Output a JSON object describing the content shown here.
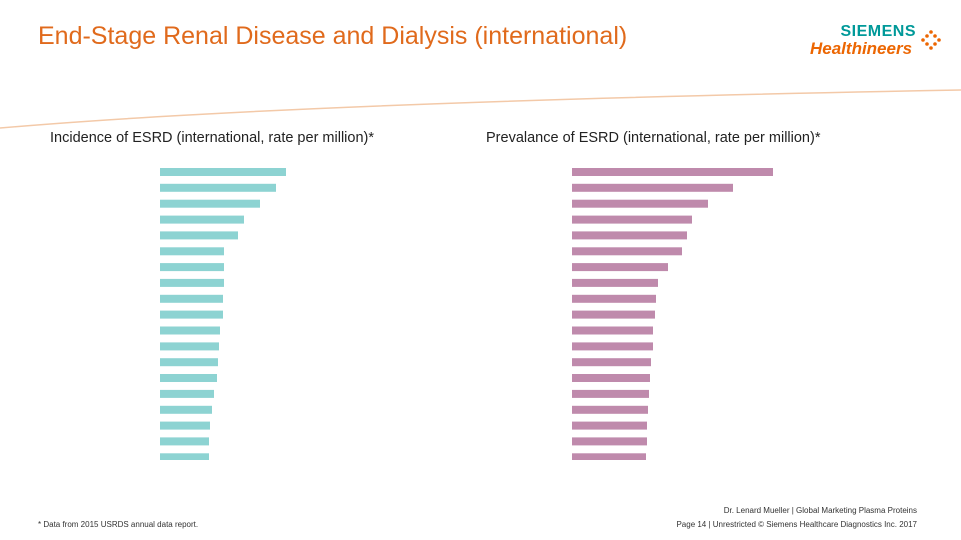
{
  "slide": {
    "title": "End-Stage Renal Disease and Dialysis (international)",
    "footnote": "* Data from 2015 USRDS annual data report.",
    "author": "Dr. Lenard Mueller | Global Marketing Plasma Proteins",
    "page_info": "Page 14 | Unrestricted © Siemens Healthcare Diagnostics Inc. 2017"
  },
  "logo": {
    "brand": "SIEMENS",
    "sub": "Healthineers",
    "brand_color": "#009999",
    "sub_color": "#ec6602"
  },
  "colors": {
    "title": "#e06a1c",
    "divider": "#f3c9a8",
    "incidence_bar": "#8dd3d2",
    "prevalence_bar": "#bf8aac"
  },
  "chart_data": [
    {
      "type": "bar",
      "orientation": "horizontal",
      "title": "Incidence of ESRD (international, rate per million)*",
      "values": [
        126,
        116,
        100,
        84,
        78,
        64,
        64,
        64,
        63,
        63,
        60,
        59,
        58,
        57,
        54,
        52,
        50,
        49,
        49
      ],
      "xlim": [
        0,
        210
      ],
      "grid": false,
      "legend": "none"
    },
    {
      "type": "bar",
      "orientation": "horizontal",
      "title": "Prevalance of ESRD (international, rate per million)*",
      "values": [
        201,
        161,
        136,
        120,
        115,
        110,
        96,
        86,
        84,
        83,
        81,
        81,
        79,
        78,
        77,
        76,
        75,
        75,
        74
      ],
      "xlim": [
        0,
        210
      ],
      "grid": false,
      "legend": "none"
    }
  ]
}
